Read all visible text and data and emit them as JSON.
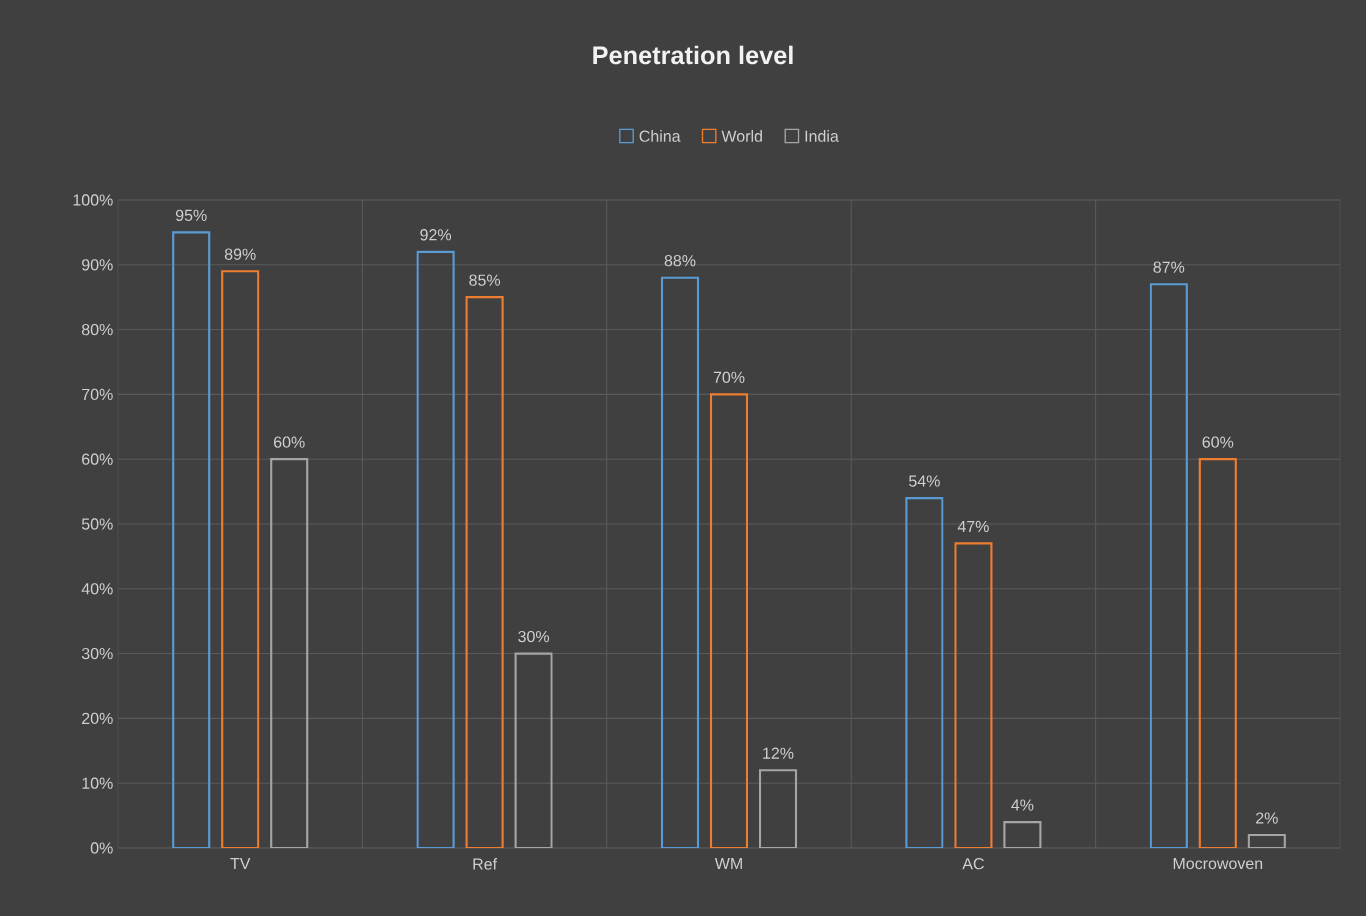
{
  "chart_data": {
    "type": "bar",
    "title": "Penetration level",
    "categories": [
      "TV",
      "Ref",
      "WM",
      "AC",
      "Mocrowoven"
    ],
    "series": [
      {
        "name": "China",
        "color": "#5b9bd5",
        "values": [
          95,
          92,
          88,
          54,
          87
        ],
        "value_labels": [
          "95%",
          "92%",
          "88%",
          "54%",
          "87%"
        ]
      },
      {
        "name": "World",
        "color": "#ed7d31",
        "values": [
          89,
          85,
          70,
          47,
          60
        ],
        "value_labels": [
          "89%",
          "85%",
          "70%",
          "47%",
          "60%"
        ]
      },
      {
        "name": "India",
        "color": "#a5a5a5",
        "values": [
          60,
          30,
          12,
          4,
          2
        ],
        "value_labels": [
          "60%",
          "30%",
          "12%",
          "4%",
          "2%"
        ]
      }
    ],
    "ylim": [
      0,
      100
    ],
    "yticks": [
      {
        "value": 0,
        "label": "0%"
      },
      {
        "value": 10,
        "label": "10%"
      },
      {
        "value": 20,
        "label": "20%"
      },
      {
        "value": 30,
        "label": "30%"
      },
      {
        "value": 40,
        "label": "40%"
      },
      {
        "value": 50,
        "label": "50%"
      },
      {
        "value": 60,
        "label": "60%"
      },
      {
        "value": 70,
        "label": "70%"
      },
      {
        "value": 80,
        "label": "80%"
      },
      {
        "value": 90,
        "label": "90%"
      },
      {
        "value": 100,
        "label": "100%"
      }
    ],
    "grid": true,
    "legend": "top"
  }
}
